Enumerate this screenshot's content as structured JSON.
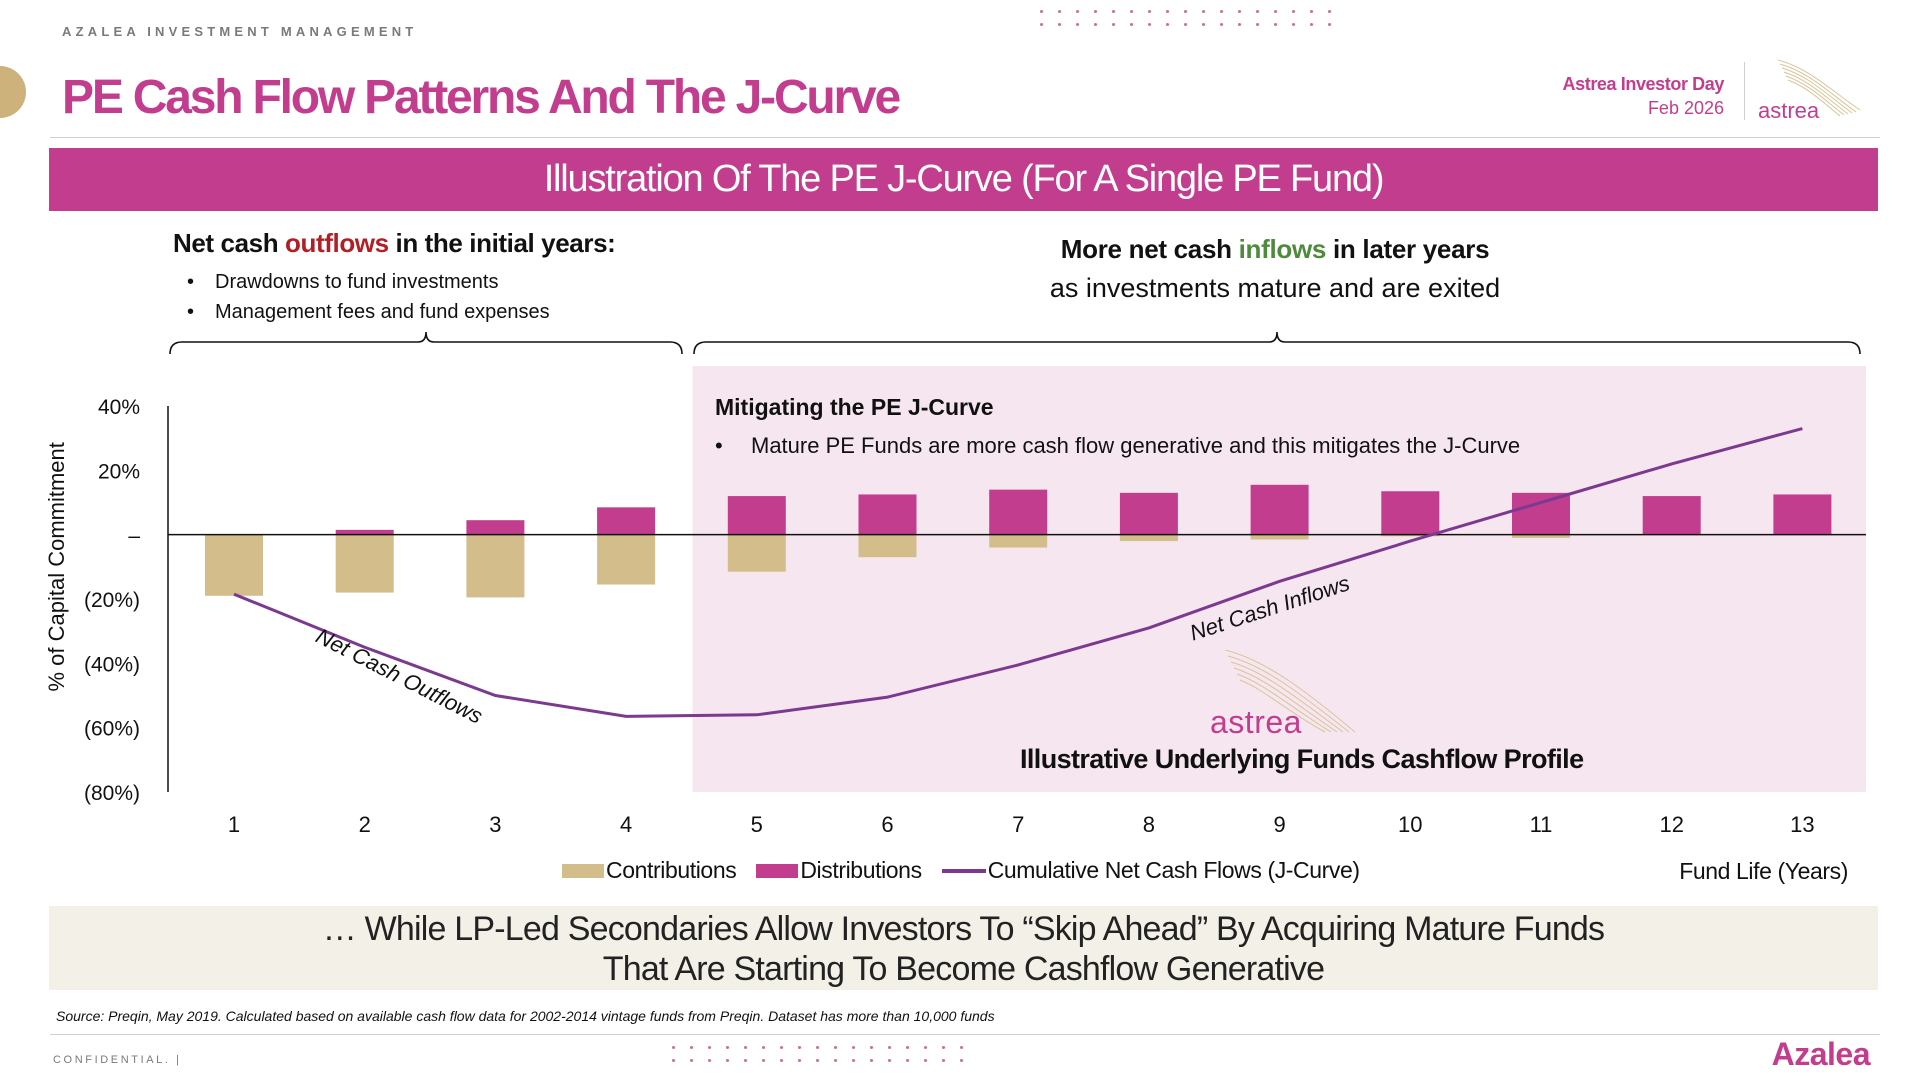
{
  "header": {
    "company": "AZALEA INVESTMENT MANAGEMENT",
    "title": "PE Cash Flow Patterns And The J-Curve",
    "event_name": "Astrea Investor Day",
    "event_date": "Feb 2026",
    "logo_text": "astrea"
  },
  "banner": "Illustration Of The PE J-Curve (For A Single PE Fund)",
  "left_note": {
    "head_pre": "Net cash ",
    "head_highlight": "outflows",
    "head_post": " in the initial years:",
    "bullets": [
      "Drawdowns to fund investments",
      "Management fees and fund expenses"
    ]
  },
  "right_note": {
    "head_pre": "More net cash ",
    "head_highlight": "inflows",
    "head_post": " in later years",
    "sub": "as investments mature and are exited"
  },
  "mitigation": {
    "title": "Mitigating the PE J-Curve",
    "bullet": "Mature PE Funds are more cash flow generative and this mitigates the J-Curve"
  },
  "watermark_text": "astrea",
  "caption": "Illustrative Underlying Funds Cashflow Profile",
  "chart_data": {
    "type": "bar",
    "ylabel": "% of Capital Commitment",
    "xlabel": "Fund Life (Years)",
    "categories": [
      "1",
      "2",
      "3",
      "4",
      "5",
      "6",
      "7",
      "8",
      "9",
      "10",
      "11",
      "12",
      "13"
    ],
    "ylim": [
      -80,
      40
    ],
    "yticks": [
      40,
      20,
      0,
      -20,
      -40,
      -60,
      -80
    ],
    "ytick_labels": [
      "40%",
      "20%",
      "–",
      "(20%)",
      "(40%)",
      "(60%)",
      "(80%)"
    ],
    "series": [
      {
        "name": "Contributions",
        "color": "#d3bd8a",
        "values": [
          -19,
          -18,
          -19.5,
          -15.5,
          -11.5,
          -7,
          -4,
          -2,
          -1.5,
          -0.5,
          -1,
          0,
          0
        ]
      },
      {
        "name": "Distributions",
        "color": "#c33d8f",
        "values": [
          0,
          1.5,
          4.5,
          8.5,
          12,
          12.5,
          14,
          13,
          15.5,
          13.5,
          13,
          12,
          12.5
        ]
      },
      {
        "name": "Cumulative Net Cash Flows (J-Curve)",
        "color": "#7b3990",
        "values": [
          -18.5,
          -35,
          -50,
          -56.5,
          -56,
          -50.5,
          -40.5,
          -29,
          -14.5,
          -2,
          10,
          22,
          33
        ]
      }
    ],
    "annotations": {
      "outflows": "Net Cash Outflows",
      "inflows": "Net Cash Inflows",
      "shaded_from_year": 5
    }
  },
  "legend": {
    "contributions": "Contributions",
    "distributions": "Distributions",
    "cumulative": "Cumulative Net Cash Flows (J-Curve)"
  },
  "bottom_box": {
    "line1": "… While LP-Led Secondaries Allow Investors To “Skip Ahead” By Acquiring Mature Funds",
    "line2": "That Are Starting To Become Cashflow Generative"
  },
  "source": "Source: Preqin, May 2019. Calculated based on available cash flow data for 2002-2014 vintage funds from Preqin. Dataset has more than 10,000 funds",
  "footer": {
    "confidential": "CONFIDENTIAL.  |",
    "brand": "Azalea"
  }
}
